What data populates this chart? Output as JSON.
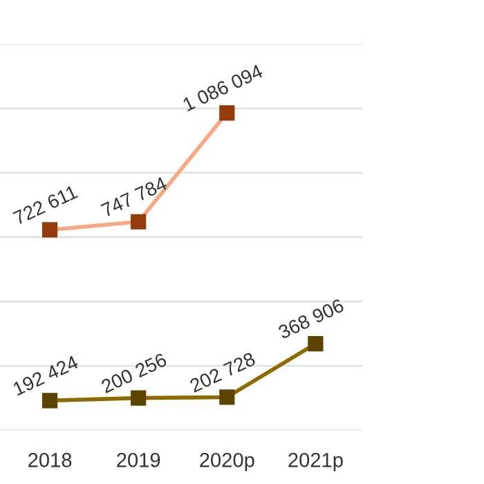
{
  "chart_data": {
    "type": "line",
    "categories": [
      "2018",
      "2019",
      "2020p",
      "2021p"
    ],
    "series": [
      {
        "color": "#f7a880",
        "colors": [
          "#963c0c",
          "#963c0c",
          "#963c0c",
          null
        ],
        "values": [
          722611,
          747784,
          1086094,
          null
        ]
      },
      {
        "color": "#8c6a00",
        "colors": [
          "#5c4300",
          "#5c4300",
          "#5c4300",
          "#5c4300"
        ],
        "values": [
          192424,
          200256,
          202728,
          368906
        ]
      }
    ],
    "ylim": [
      100000,
      1300000
    ],
    "yticks": [
      {
        "value": 100000,
        "label": null
      },
      {
        "value": 300000,
        "label": null
      },
      {
        "value": 500000,
        "label": null
      },
      {
        "value": 700000,
        "label": null
      },
      {
        "value": 900000,
        "label": null
      },
      {
        "value": 1100000,
        "label": null
      },
      {
        "value": 1300000,
        "label": null
      }
    ],
    "tick_labels": "x",
    "grid": "y",
    "marker": "square",
    "data_labels": true,
    "legend": false
  }
}
